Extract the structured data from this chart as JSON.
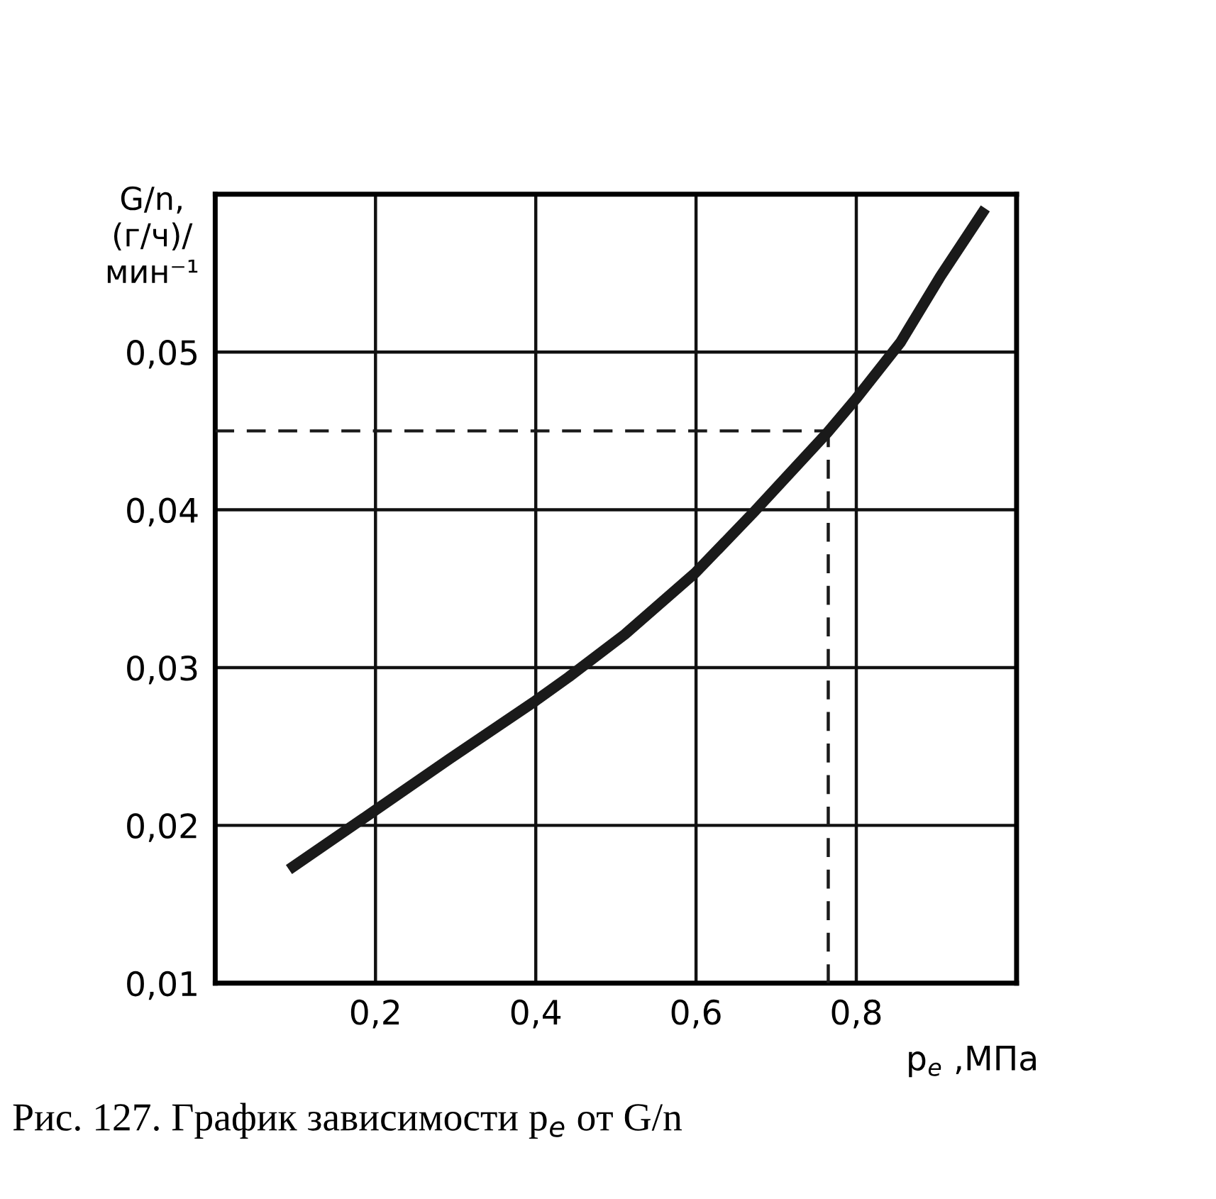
{
  "chart_data": {
    "type": "line",
    "xlabel": "p$_{e}$ ,МПа",
    "ylabel": "G/n,\n(г/ч)/\nмин⁻¹",
    "annotations": [
      "Рис. 127. График зависимости p$_{e}$ от G/n"
    ],
    "x": [
      0.092,
      0.198,
      0.292,
      0.397,
      0.441,
      0.511,
      0.599,
      0.673,
      0.764,
      0.799,
      0.855,
      0.905,
      0.961
    ],
    "series": [
      {
        "color": "#1a1a1a",
        "values": [
          0.0172,
          0.0209,
          0.0242,
          0.0278,
          0.0294,
          0.0321,
          0.036,
          0.0399,
          0.0449,
          0.047,
          0.0506,
          0.0548,
          0.0591
        ]
      }
    ],
    "xlim": [
      0,
      1
    ],
    "ylim": [
      0.01,
      0.06
    ],
    "xticks": [
      {
        "value": 0.2,
        "label": "0,2"
      },
      {
        "value": 0.4,
        "label": "0,4"
      },
      {
        "value": 0.6,
        "label": "0,6"
      },
      {
        "value": 0.8,
        "label": "0,8"
      }
    ],
    "yticks": [
      {
        "value": 0.01,
        "label": "0,01"
      },
      {
        "value": 0.02,
        "label": "0,02"
      },
      {
        "value": 0.03,
        "label": "0,03"
      },
      {
        "value": 0.04,
        "label": "0,04"
      },
      {
        "value": 0.05,
        "label": "0,05"
      }
    ],
    "ref_lines": [
      {
        "axis": "y",
        "value": 0.045,
        "line_style": "dashed",
        "color": "#1a1a1a"
      },
      {
        "axis": "x",
        "value": 0.765,
        "line_style": "dashed",
        "color": "#1a1a1a"
      }
    ],
    "grid": true,
    "line_style": "solid",
    "marker": "none"
  }
}
